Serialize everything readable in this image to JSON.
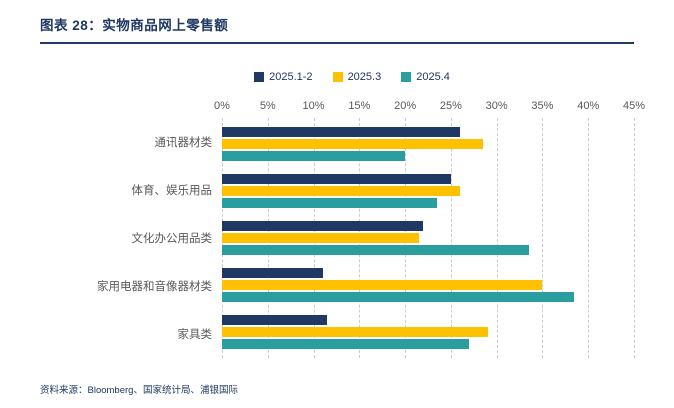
{
  "header": {
    "title": "图表 28：实物商品网上零售额"
  },
  "footer": {
    "source": "资料来源：Bloomberg、国家统计局、浦银国际"
  },
  "chart_data": {
    "type": "bar",
    "orientation": "horizontal",
    "title": "实物商品网上零售额",
    "categories": [
      "通讯器材类",
      "体育、娱乐用品",
      "文化办公用品类",
      "家用电器和音像器材类",
      "家具类"
    ],
    "series": [
      {
        "name": "2025.1-2",
        "color": "#1F3864",
        "values": [
          26,
          25,
          22,
          11,
          11.5
        ]
      },
      {
        "name": "2025.3",
        "color": "#FFC000",
        "values": [
          28.5,
          26,
          21.5,
          35,
          29
        ]
      },
      {
        "name": "2025.4",
        "color": "#2A9E9E",
        "values": [
          20,
          23.5,
          33.5,
          38.5,
          27
        ]
      }
    ],
    "x_axis": {
      "unit": "%",
      "min": 0,
      "max": 45,
      "step": 5,
      "tick_labels": [
        "0%",
        "5%",
        "10%",
        "15%",
        "20%",
        "25%",
        "30%",
        "35%",
        "40%",
        "45%"
      ]
    },
    "legend_position": "top",
    "grid": "dashed-vertical",
    "axis_label_color": "#595959",
    "title_color": "#1F3864"
  }
}
